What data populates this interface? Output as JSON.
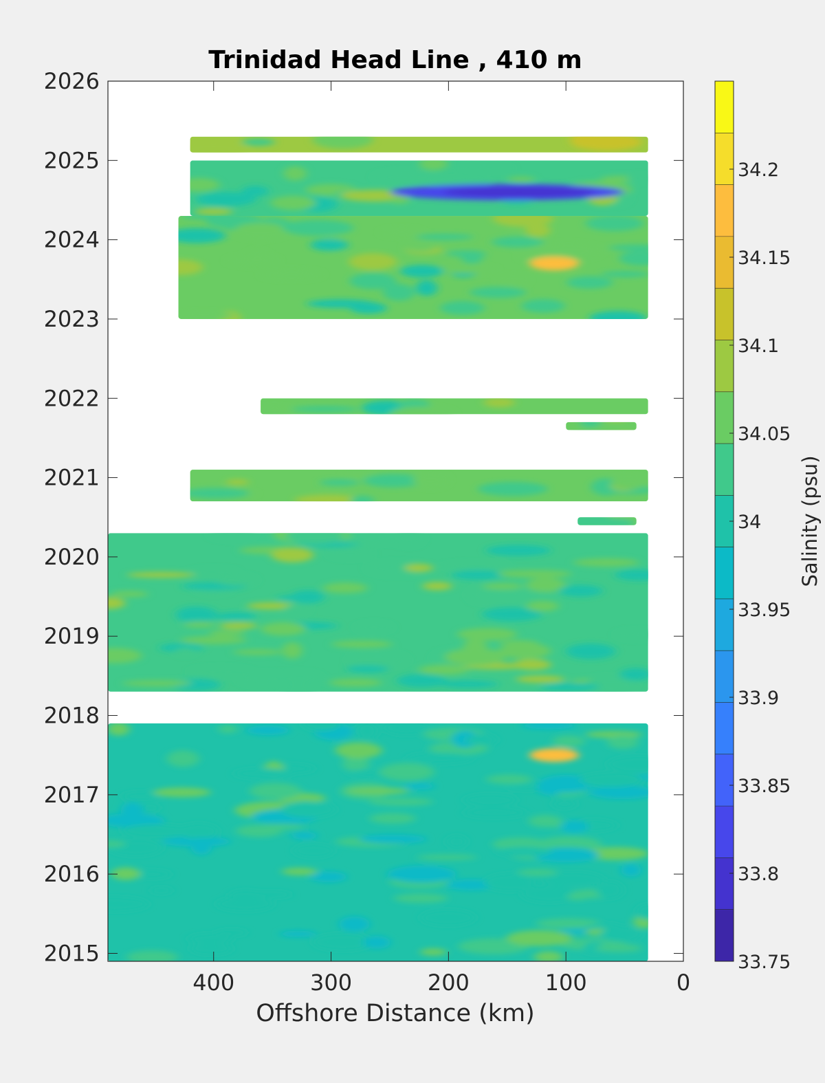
{
  "chart_data": {
    "type": "heatmap",
    "title": "Trinidad Head Line , 410 m",
    "xlabel": "Offshore Distance (km)",
    "ylabel": "",
    "xlim": [
      490,
      0
    ],
    "ylim": [
      2014.9,
      2026
    ],
    "x_ticks": [
      400,
      300,
      200,
      100,
      0
    ],
    "y_ticks": [
      2015,
      2016,
      2017,
      2018,
      2019,
      2020,
      2021,
      2022,
      2023,
      2024,
      2025,
      2026
    ],
    "colorbar": {
      "label": "Salinity (psu)",
      "range": [
        33.75,
        34.25
      ],
      "ticks": [
        33.75,
        33.8,
        33.85,
        33.9,
        33.95,
        34,
        34.05,
        34.1,
        34.15,
        34.2
      ],
      "tick_labels": [
        "33.75",
        "33.8",
        "33.85",
        "33.9",
        "33.95",
        "34",
        "34.05",
        "34.1",
        "34.15",
        "34.2"
      ],
      "colors": [
        "#3d26a8",
        "#4433cf",
        "#4747eb",
        "#4263fa",
        "#3680fc",
        "#2b96ee",
        "#1ea9df",
        "#0cbac7",
        "#1fc2a9",
        "#40c98b",
        "#6acc63",
        "#9dc942",
        "#c8c22b",
        "#eabb31",
        "#fdbd3e",
        "#f5dd2b",
        "#f9f816"
      ]
    },
    "bands": [
      {
        "y0": 2025.1,
        "y1": 2025.3,
        "x_start": 420,
        "x_end": 30,
        "typical_salinity": 34.08
      },
      {
        "y0": 2024.3,
        "y1": 2025.0,
        "x_start": 420,
        "x_end": 30,
        "typical_salinity": 34.04,
        "min_salinity": 33.78
      },
      {
        "y0": 2023.0,
        "y1": 2024.3,
        "x_start": 430,
        "x_end": 30,
        "typical_salinity": 34.05,
        "max_salinity": 34.18
      },
      {
        "y0": 2021.8,
        "y1": 2022.0,
        "x_start": 360,
        "x_end": 30,
        "typical_salinity": 34.05
      },
      {
        "y0": 2021.6,
        "y1": 2021.7,
        "x_start": 100,
        "x_end": 40,
        "typical_salinity": 34.06
      },
      {
        "y0": 2020.7,
        "y1": 2021.1,
        "x_start": 420,
        "x_end": 30,
        "typical_salinity": 34.07
      },
      {
        "y0": 2020.4,
        "y1": 2020.5,
        "x_start": 90,
        "x_end": 40,
        "typical_salinity": 34.05
      },
      {
        "y0": 2018.3,
        "y1": 2020.3,
        "x_start": 490,
        "x_end": 30,
        "typical_salinity": 34.04
      },
      {
        "y0": 2014.9,
        "y1": 2017.9,
        "x_start": 490,
        "x_end": 30,
        "typical_salinity": 34.01,
        "max_salinity": 34.17
      }
    ]
  }
}
